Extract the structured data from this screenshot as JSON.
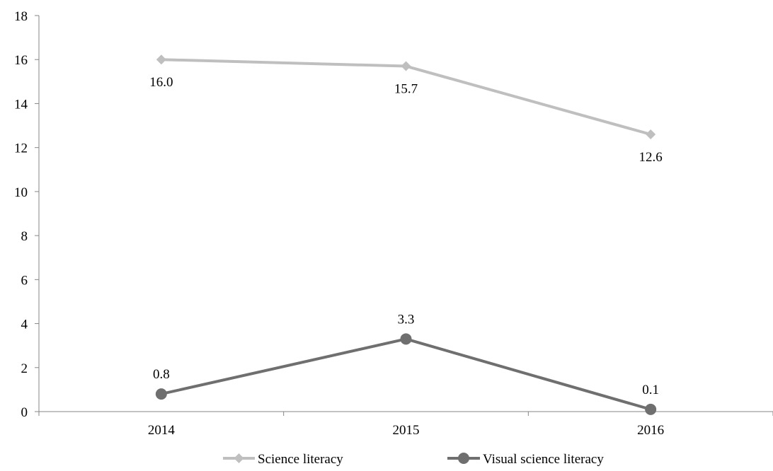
{
  "chart_data": {
    "type": "line",
    "title": "",
    "xlabel": "",
    "ylabel": "",
    "categories": [
      "2014",
      "2015",
      "2016"
    ],
    "ylim": [
      0,
      18
    ],
    "y_ticks": [
      0,
      2,
      4,
      6,
      8,
      10,
      12,
      14,
      16,
      18
    ],
    "grid": false,
    "legend_position": "bottom",
    "series": [
      {
        "name": "Science literacy",
        "values": [
          16.0,
          15.7,
          12.6
        ],
        "labels": [
          "16.0",
          "15.7",
          "12.6"
        ],
        "color": "#bfbfbf",
        "marker": "diamond"
      },
      {
        "name": "Visual science literacy",
        "values": [
          0.8,
          3.3,
          0.1
        ],
        "labels": [
          "0.8",
          "3.3",
          "0.1"
        ],
        "color": "#6f6f6f",
        "marker": "circle"
      }
    ]
  }
}
